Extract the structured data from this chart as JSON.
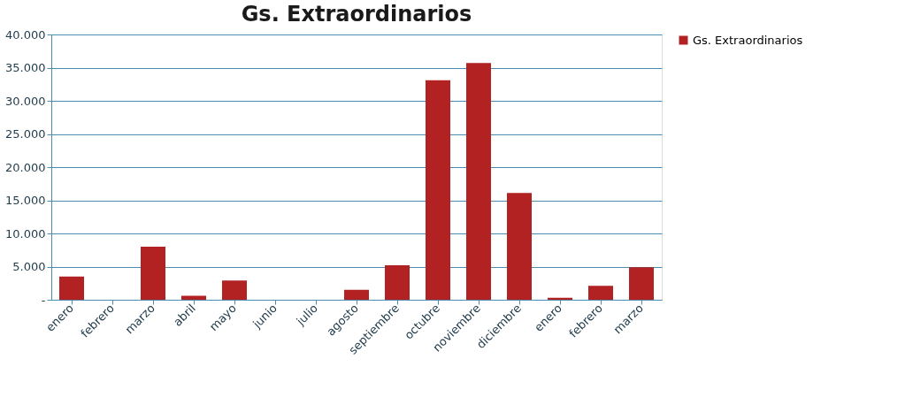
{
  "chart_data": {
    "type": "bar",
    "title": "Gs. Extraordinarios",
    "categories": [
      "enero",
      "febrero",
      "marzo",
      "abril",
      "mayo",
      "junio",
      "julio",
      "agosto",
      "septiembre",
      "octubre",
      "noviembre",
      "diciembre",
      "enero",
      "febrero",
      "marzo"
    ],
    "series": [
      {
        "name": "Gs. Extraordinarios",
        "color": "#b22222",
        "values": [
          3500,
          0,
          8000,
          600,
          2900,
          0,
          0,
          1500,
          5200,
          33100,
          35700,
          16100,
          300,
          2100,
          4900
        ]
      }
    ],
    "ylim": [
      0,
      40000
    ],
    "yticks": [
      {
        "value": 0,
        "label": "-"
      },
      {
        "value": 5000,
        "label": "5.000"
      },
      {
        "value": 10000,
        "label": "10.000"
      },
      {
        "value": 15000,
        "label": "15.000"
      },
      {
        "value": 20000,
        "label": "20.000"
      },
      {
        "value": 25000,
        "label": "25.000"
      },
      {
        "value": 30000,
        "label": "30.000"
      },
      {
        "value": 35000,
        "label": "35.000"
      },
      {
        "value": 40000,
        "label": "40.000"
      }
    ],
    "grid": "y",
    "legend": "right"
  }
}
